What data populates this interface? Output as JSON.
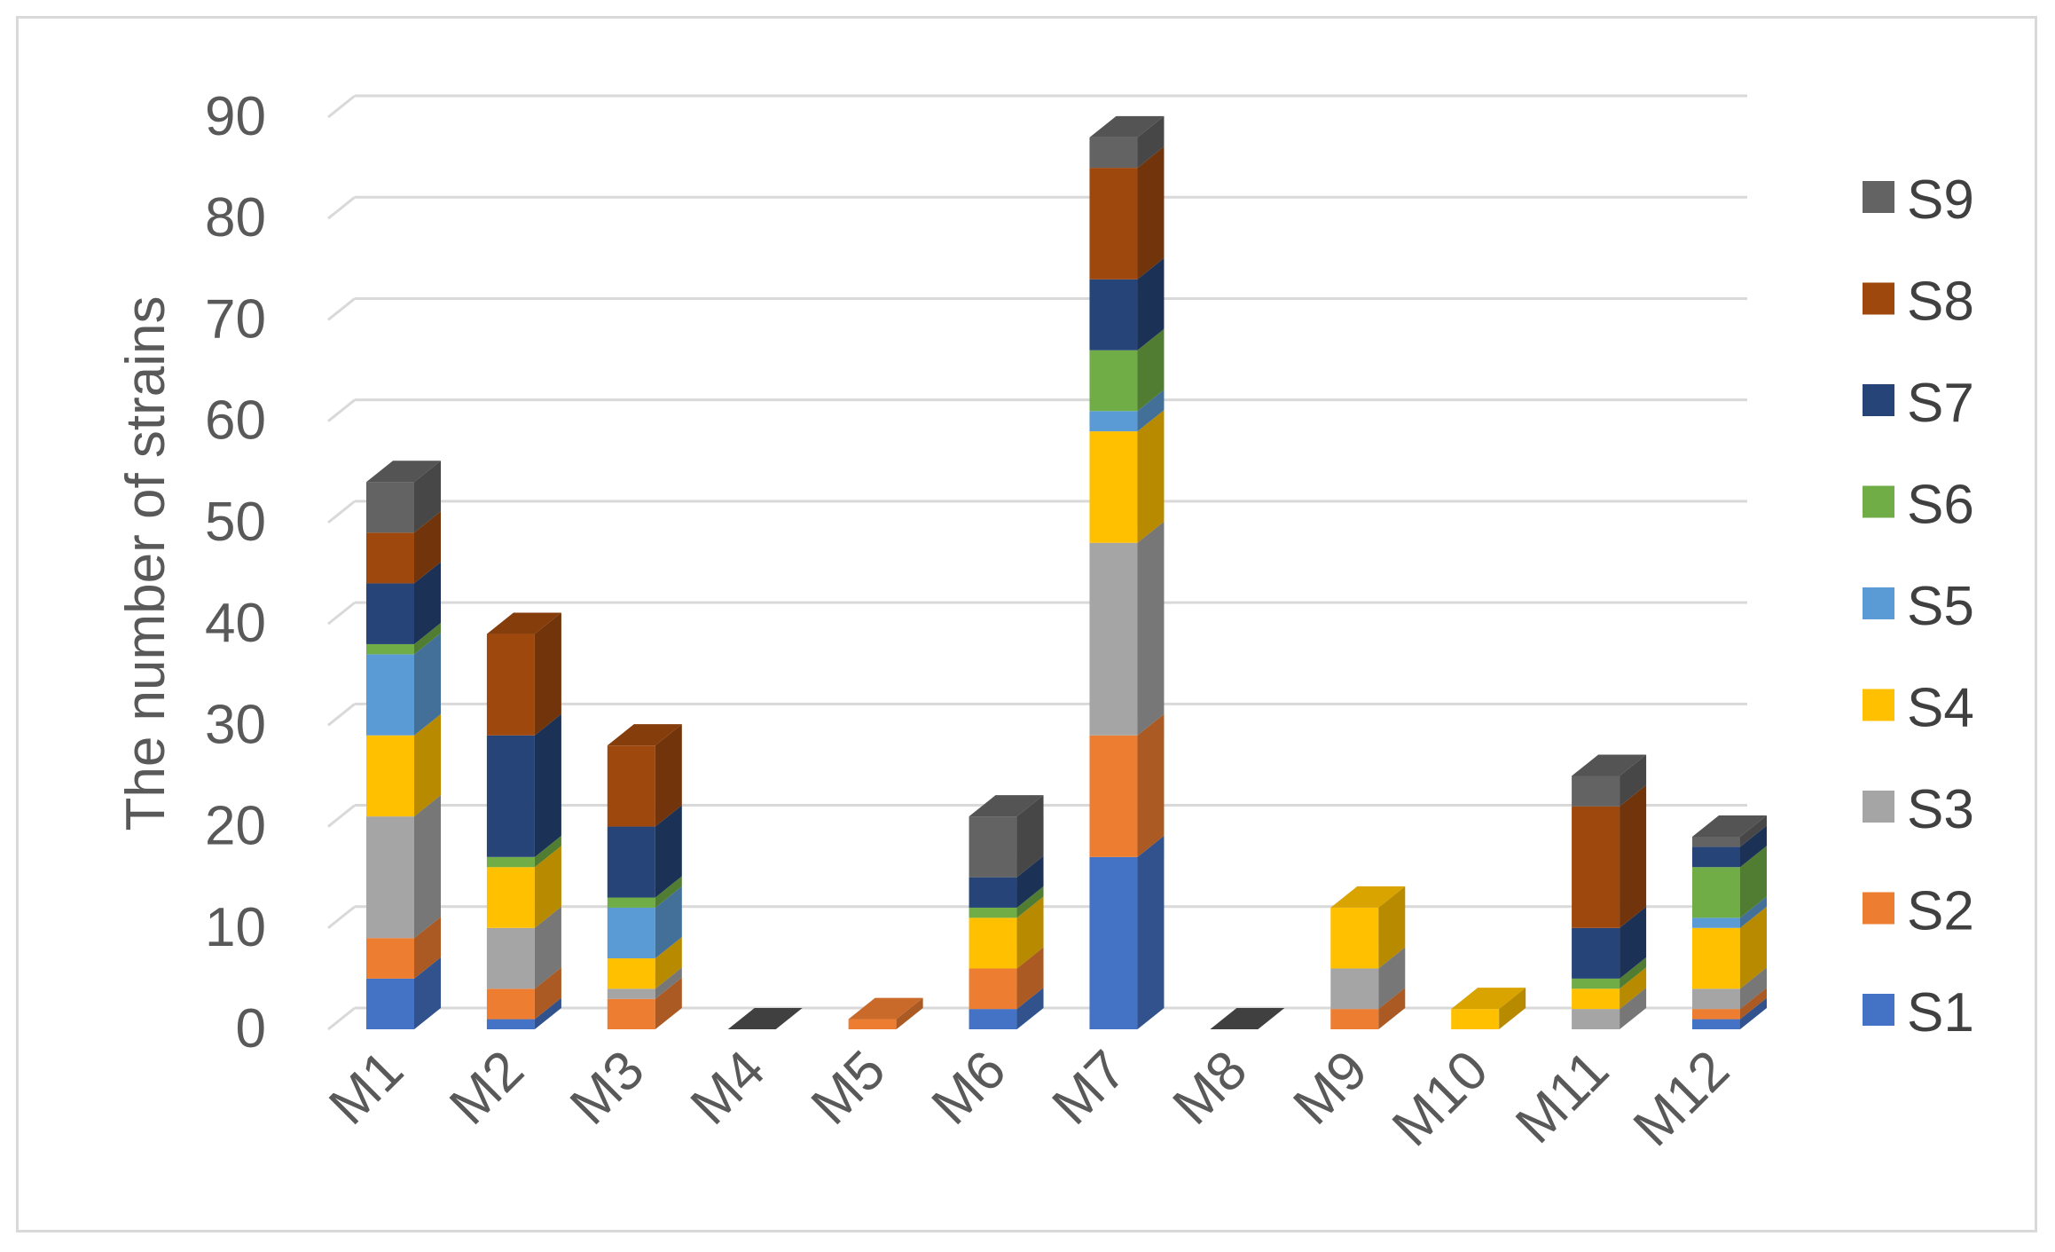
{
  "chart_data": {
    "type": "bar",
    "stacked": true,
    "three_d": true,
    "ylabel": "The number of strains",
    "ylim": [
      0,
      90
    ],
    "yticks": [
      0,
      10,
      20,
      30,
      40,
      50,
      60,
      70,
      80,
      90
    ],
    "grid": true,
    "legend_position": "right",
    "categories": [
      "M1",
      "M2",
      "M3",
      "M4",
      "M5",
      "M6",
      "M7",
      "M8",
      "M9",
      "M10",
      "M11",
      "M12"
    ],
    "series": [
      {
        "name": "S1",
        "color": "#4472C4",
        "values": [
          5,
          1,
          0,
          0,
          0,
          2,
          17,
          0,
          0,
          0,
          0,
          1
        ]
      },
      {
        "name": "S2",
        "color": "#ED7D31",
        "values": [
          4,
          3,
          3,
          0,
          1,
          4,
          12,
          0,
          2,
          0,
          0,
          1
        ]
      },
      {
        "name": "S3",
        "color": "#A5A5A5",
        "values": [
          12,
          6,
          1,
          0,
          0,
          0,
          19,
          0,
          4,
          0,
          2,
          2
        ]
      },
      {
        "name": "S4",
        "color": "#FFC000",
        "values": [
          8,
          6,
          3,
          0,
          0,
          5,
          11,
          0,
          6,
          2,
          2,
          6
        ]
      },
      {
        "name": "S5",
        "color": "#5B9BD5",
        "values": [
          8,
          0,
          5,
          0,
          0,
          0,
          2,
          0,
          0,
          0,
          0,
          1
        ]
      },
      {
        "name": "S6",
        "color": "#70AD47",
        "values": [
          1,
          1,
          1,
          0,
          0,
          1,
          6,
          0,
          0,
          0,
          1,
          5
        ]
      },
      {
        "name": "S7",
        "color": "#264478",
        "values": [
          6,
          12,
          7,
          0,
          0,
          3,
          7,
          0,
          0,
          0,
          5,
          2
        ]
      },
      {
        "name": "S8",
        "color": "#9E480E",
        "values": [
          5,
          10,
          8,
          0,
          0,
          0,
          11,
          0,
          0,
          0,
          12,
          0
        ]
      },
      {
        "name": "S9",
        "color": "#636363",
        "values": [
          5,
          0,
          0,
          0,
          0,
          6,
          3,
          0,
          0,
          0,
          3,
          1
        ]
      }
    ]
  }
}
